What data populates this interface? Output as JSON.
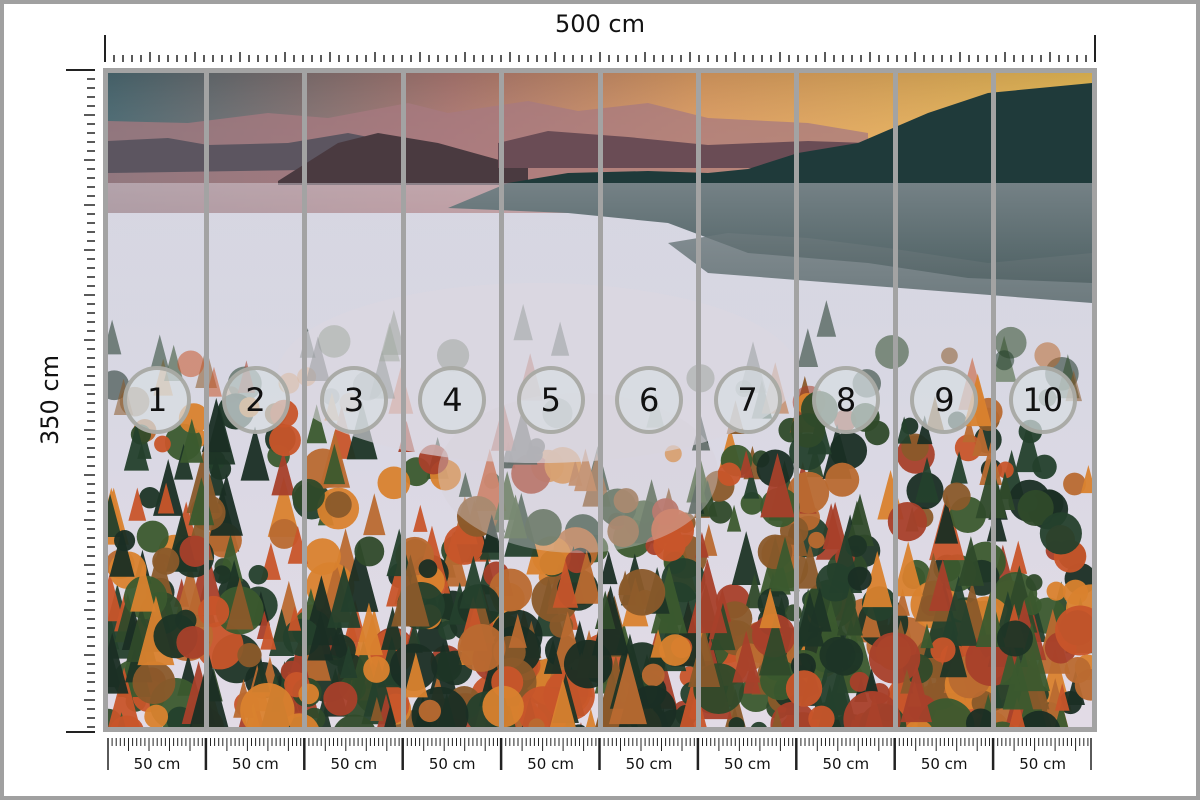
{
  "dimensions": {
    "width_label": "500 cm",
    "height_label": "350 cm"
  },
  "panels": [
    {
      "number": "1",
      "width_label": "50 cm"
    },
    {
      "number": "2",
      "width_label": "50 cm"
    },
    {
      "number": "3",
      "width_label": "50 cm"
    },
    {
      "number": "4",
      "width_label": "50 cm"
    },
    {
      "number": "5",
      "width_label": "50 cm"
    },
    {
      "number": "6",
      "width_label": "50 cm"
    },
    {
      "number": "7",
      "width_label": "50 cm"
    },
    {
      "number": "8",
      "width_label": "50 cm"
    },
    {
      "number": "9",
      "width_label": "50 cm"
    },
    {
      "number": "10",
      "width_label": "50 cm"
    }
  ],
  "colors": {
    "frame": "#a3a3a3",
    "sky_top": "#4f6f78",
    "sky_glow": "#f2b24f",
    "fog": "#d9d6e0",
    "forest_dark": "#1d3526",
    "autumn": "#c8552a"
  }
}
